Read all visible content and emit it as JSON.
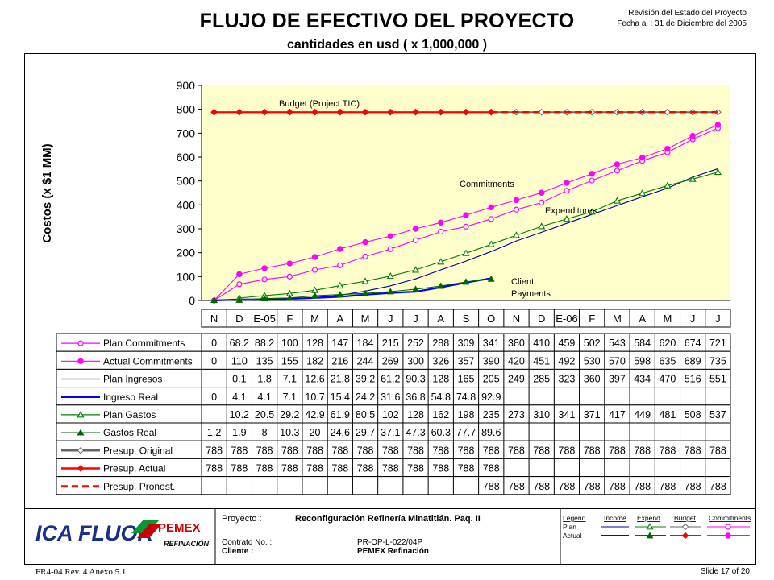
{
  "header": {
    "title": "FLUJO DE EFECTIVO DEL PROYECTO",
    "subtitle": "cantidades en usd ( x 1,000,000 )",
    "revision_label": "Revisión del Estado del Proyecto",
    "date_label": "Fecha al :",
    "date_value": "31 de Diciembre del 2005"
  },
  "chart_data": {
    "type": "line",
    "ylabel": "Costos (x $1 MM)",
    "ylim": [
      0,
      900
    ],
    "yticks": [
      "0",
      "100",
      "200",
      "300",
      "400",
      "500",
      "600",
      "700",
      "800",
      "900"
    ],
    "categories": [
      "N",
      "D",
      "E-05",
      "F",
      "M",
      "A",
      "M",
      "J",
      "J",
      "A",
      "S",
      "O",
      "N",
      "D",
      "E-06",
      "F",
      "M",
      "A",
      "M",
      "J",
      "J"
    ],
    "annotations": [
      "Budget (Project TIC)",
      "Commitments",
      "Expenditures",
      "Client",
      "Payments"
    ],
    "plot_background": "#ffffcc",
    "series": [
      {
        "name": "Plan Commitments",
        "color": "#ff00ff",
        "marker": "circle-open",
        "dash": "solid",
        "values": [
          0,
          68.2,
          88.2,
          100,
          128,
          147,
          184,
          215,
          252,
          288,
          309,
          341,
          380,
          410,
          459,
          502,
          543,
          584,
          620,
          674,
          721
        ],
        "labels": [
          "0",
          "68.2",
          "88.2",
          "100",
          "128",
          "147",
          "184",
          "215",
          "252",
          "288",
          "309",
          "341",
          "380",
          "410",
          "459",
          "502",
          "543",
          "584",
          "620",
          "674",
          "721"
        ]
      },
      {
        "name": "Actual Commitments",
        "color": "#ff00ff",
        "marker": "circle-filled",
        "dash": "solid",
        "values": [
          0,
          110,
          135,
          155,
          182,
          216,
          244,
          269,
          300,
          326,
          357,
          390,
          420,
          451,
          492,
          530,
          570,
          598,
          635,
          689,
          735
        ],
        "labels": [
          "0",
          "110",
          "135",
          "155",
          "182",
          "216",
          "244",
          "269",
          "300",
          "326",
          "357",
          "390",
          "420",
          "451",
          "492",
          "530",
          "570",
          "598",
          "635",
          "689",
          "735"
        ]
      },
      {
        "name": "Plan Ingresos",
        "color": "#000099",
        "marker": "none",
        "dash": "solid",
        "values": [
          null,
          0.1,
          1.8,
          7.1,
          12.6,
          21.8,
          39.2,
          61.2,
          90.3,
          128,
          165,
          205,
          249,
          285,
          323,
          360,
          397,
          434,
          470,
          516,
          551
        ],
        "labels": [
          "",
          "0.1",
          "1.8",
          "7.1",
          "12.6",
          "21.8",
          "39.2",
          "61.2",
          "90.3",
          "128",
          "165",
          "205",
          "249",
          "285",
          "323",
          "360",
          "397",
          "434",
          "470",
          "516",
          "551"
        ]
      },
      {
        "name": "Ingreso Real",
        "color": "#0000ff",
        "marker": "none",
        "dash": "solid",
        "bold": true,
        "values": [
          0,
          4.1,
          4.1,
          7.1,
          10.7,
          15.4,
          24.2,
          31.6,
          36.8,
          54.8,
          74.8,
          92.9,
          null,
          null,
          null,
          null,
          null,
          null,
          null,
          null,
          null
        ],
        "labels": [
          "0",
          "4.1",
          "4.1",
          "7.1",
          "10.7",
          "15.4",
          "24.2",
          "31.6",
          "36.8",
          "54.8",
          "74.8",
          "92.9",
          "",
          "",
          "",
          "",
          "",
          "",
          "",
          "",
          ""
        ]
      },
      {
        "name": "Plan Gastos",
        "color": "#008000",
        "marker": "triangle-open",
        "dash": "solid",
        "values": [
          null,
          10.2,
          20.5,
          29.2,
          42.9,
          61.9,
          80.5,
          102,
          128,
          162,
          198,
          235,
          273,
          310,
          341,
          371,
          417,
          449,
          481,
          508,
          537
        ],
        "labels": [
          "",
          "10.2",
          "20.5",
          "29.2",
          "42.9",
          "61.9",
          "80.5",
          "102",
          "128",
          "162",
          "198",
          "235",
          "273",
          "310",
          "341",
          "371",
          "417",
          "449",
          "481",
          "508",
          "537"
        ]
      },
      {
        "name": "Gastos Real",
        "color": "#006600",
        "marker": "triangle-filled",
        "dash": "solid",
        "values": [
          1.2,
          1.9,
          8,
          10.3,
          20,
          24.6,
          29.7,
          37.1,
          47.3,
          60.3,
          77.7,
          89.6,
          null,
          null,
          null,
          null,
          null,
          null,
          null,
          null,
          null
        ],
        "labels": [
          "1.2",
          "1.9",
          "8",
          "10.3",
          "20",
          "24.6",
          "29.7",
          "37.1",
          "47.3",
          "60.3",
          "77.7",
          "89.6",
          "",
          "",
          "",
          "",
          "",
          "",
          "",
          "",
          ""
        ]
      },
      {
        "name": "Presup. Original",
        "color": "#666666",
        "marker": "diamond-open",
        "dash": "solid",
        "values": [
          788,
          788,
          788,
          788,
          788,
          788,
          788,
          788,
          788,
          788,
          788,
          788,
          788,
          788,
          788,
          788,
          788,
          788,
          788,
          788,
          788
        ],
        "labels": [
          "788",
          "788",
          "788",
          "788",
          "788",
          "788",
          "788",
          "788",
          "788",
          "788",
          "788",
          "788",
          "788",
          "788",
          "788",
          "788",
          "788",
          "788",
          "788",
          "788",
          "788"
        ]
      },
      {
        "name": "Presup. Actual",
        "color": "#ff0000",
        "marker": "diamond-filled",
        "dash": "solid",
        "values": [
          788,
          788,
          788,
          788,
          788,
          788,
          788,
          788,
          788,
          788,
          788,
          788,
          null,
          null,
          null,
          null,
          null,
          null,
          null,
          null,
          null
        ],
        "labels": [
          "788",
          "788",
          "788",
          "788",
          "788",
          "788",
          "788",
          "788",
          "788",
          "788",
          "788",
          "788",
          "",
          "",
          "",
          "",
          "",
          "",
          "",
          "",
          ""
        ]
      },
      {
        "name": "Presup. Pronost.",
        "color": "#ff0000",
        "marker": "none",
        "dash": "dashed",
        "values": [
          null,
          null,
          null,
          null,
          null,
          null,
          null,
          null,
          null,
          null,
          null,
          788,
          788,
          788,
          788,
          788,
          788,
          788,
          788,
          788,
          788
        ],
        "labels": [
          "",
          "",
          "",
          "",
          "",
          "",
          "",
          "",
          "",
          "",
          "",
          "788",
          "788",
          "788",
          "788",
          "788",
          "788",
          "788",
          "788",
          "788",
          "788"
        ]
      }
    ]
  },
  "footer": {
    "logo_text": "ICA FLUOR",
    "pemex_text": "PEMEX",
    "refinacion_text": "REFINACIÓN",
    "project_label": "Proyecto :",
    "project_value": "Reconfiguración Refinería Minatitlán.  Paq. II",
    "contract_label": "Contrato No. :",
    "contract_value": "PR-OP-L-022/04P",
    "client_label": "Cliente :",
    "client_value": "PEMEX Refinación",
    "legend_headers": [
      "Legend",
      "Income",
      "Expend",
      "Budget",
      "Commitments"
    ],
    "legend_rows": [
      "Plan",
      "Actual"
    ],
    "form_id": "FR4-04 Rev. 4  Anexo 5.1",
    "slide_label": "Slide 17 of 20"
  }
}
